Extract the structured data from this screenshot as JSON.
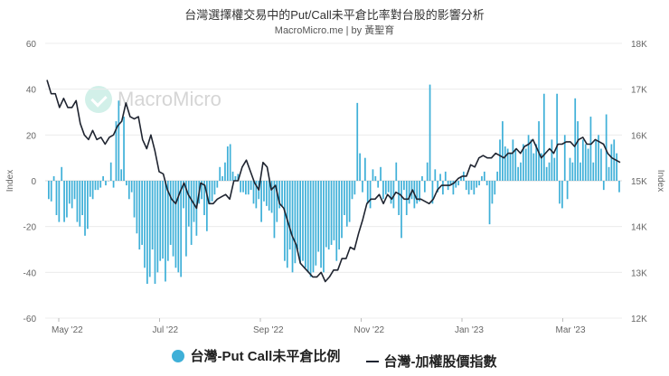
{
  "chart_data": {
    "type": "bar+line",
    "title": "台灣選擇權交易中的Put/Call未平倉比率對台股的影響分析",
    "subtitle": "MacroMicro.me | by 黃聖育",
    "watermark": "MacroMicro",
    "y_left": {
      "label": "Index",
      "ylim": [
        -60,
        60
      ],
      "ticks": [
        60,
        40,
        20,
        0,
        -20,
        -40,
        -60
      ]
    },
    "y_right": {
      "label": "Index",
      "ylim": [
        12,
        18
      ],
      "ticks": [
        "18K",
        "17K",
        "16K",
        "15K",
        "14K",
        "13K",
        "12K"
      ]
    },
    "x_axis": {
      "ticks": [
        "May '22",
        "Jul '22",
        "Sep '22",
        "Nov '22",
        "Jan '23",
        "Mar '23"
      ]
    },
    "legend_position": "bottom",
    "series": [
      {
        "name": "台灣-Put Call未平倉比例",
        "kind": "bar",
        "color": "#3fb0d8",
        "values": [
          -8,
          -9,
          2,
          -15,
          -18,
          6,
          -18,
          -16,
          -10,
          -12,
          -8,
          -18,
          -20,
          -15,
          -24,
          -21,
          -7,
          -8,
          -4,
          -4,
          -3,
          2,
          -2,
          0,
          8,
          -3,
          26,
          35,
          5,
          28,
          -2,
          -8,
          -5,
          -16,
          -23,
          -30,
          -28,
          -38,
          -45,
          -42,
          -30,
          -45,
          -40,
          -35,
          -34,
          -44,
          -35,
          -28,
          -33,
          -38,
          -40,
          -42,
          -12,
          -33,
          -20,
          -28,
          -18,
          -24,
          -10,
          -8,
          -15,
          -22,
          -10,
          -9,
          -6,
          -3,
          6,
          2,
          8,
          15,
          16,
          4,
          2,
          3,
          -5,
          -5,
          -6,
          -6,
          -4,
          -10,
          -12,
          -8,
          -18,
          -9,
          -11,
          -13,
          -14,
          -25,
          -18,
          -12,
          -11,
          -35,
          -38,
          -30,
          -40,
          -36,
          -30,
          -36,
          -35,
          -38,
          -40,
          -42,
          -40,
          -37,
          -31,
          -38,
          -40,
          -29,
          -30,
          -28,
          -26,
          -35,
          -30,
          -25,
          -15,
          -20,
          -18,
          -8,
          -6,
          34,
          12,
          -5,
          10,
          -10,
          -12,
          5,
          2,
          -3,
          6,
          -8,
          -6,
          -5,
          -10,
          -12,
          8,
          -15,
          -25,
          -4,
          -15,
          -10,
          -8,
          -12,
          -10,
          -9,
          2,
          -5,
          8,
          42,
          -10,
          5,
          -5,
          3,
          -6,
          4,
          -4,
          -2,
          -6,
          -3,
          -2,
          2,
          4,
          -4,
          -6,
          -4,
          -6,
          -3,
          -2,
          2,
          4,
          -2,
          -19,
          -10,
          -6,
          4,
          18,
          26,
          15,
          14,
          12,
          18,
          14,
          6,
          8,
          16,
          14,
          20,
          18,
          12,
          16,
          26,
          12,
          38,
          6,
          8,
          18,
          10,
          38,
          -10,
          -12,
          20,
          -8,
          10,
          8,
          36,
          26,
          8,
          18,
          16,
          14,
          28,
          8,
          18,
          20,
          14,
          -4,
          29,
          6,
          16,
          18,
          12,
          -5
        ],
        "range": [
          -45,
          42
        ]
      },
      {
        "name": "台灣-加權股價指數",
        "kind": "line",
        "color": "#1f2430",
        "values": [
          17.2,
          16.9,
          16.9,
          16.6,
          16.8,
          16.6,
          16.6,
          16.75,
          16.25,
          16.0,
          15.9,
          16.1,
          15.9,
          15.95,
          15.8,
          15.95,
          16.0,
          16.2,
          16.3,
          16.7,
          16.4,
          16.35,
          16.4,
          15.9,
          15.7,
          16.0,
          15.65,
          15.2,
          15.15,
          14.8,
          14.6,
          14.5,
          14.75,
          14.95,
          14.7,
          14.55,
          14.4,
          14.95,
          14.9,
          14.5,
          14.5,
          14.6,
          14.65,
          14.7,
          14.6,
          15.0,
          15.0,
          15.3,
          15.45,
          15.2,
          14.95,
          14.8,
          15.4,
          15.3,
          14.8,
          14.9,
          14.5,
          14.4,
          14.1,
          13.8,
          13.6,
          13.2,
          13.1,
          13.0,
          12.9,
          12.9,
          13.0,
          12.8,
          12.9,
          13.05,
          13.05,
          13.3,
          13.3,
          13.55,
          13.5,
          13.85,
          14.15,
          14.5,
          14.6,
          14.6,
          14.7,
          14.5,
          14.7,
          14.6,
          14.75,
          14.7,
          14.6,
          14.6,
          14.8,
          14.6,
          14.6,
          14.55,
          14.5,
          14.6,
          14.8,
          14.9,
          14.9,
          14.9,
          14.95,
          15.05,
          15.1,
          15.1,
          15.35,
          15.3,
          15.5,
          15.55,
          15.5,
          15.5,
          15.6,
          15.55,
          15.5,
          15.6,
          15.6,
          15.7,
          15.6,
          15.75,
          15.8,
          15.9,
          15.7,
          15.5,
          15.6,
          15.7,
          15.6,
          15.8,
          15.8,
          15.85,
          15.85,
          15.75,
          15.9,
          15.95,
          15.8,
          15.8,
          15.9,
          15.85,
          15.8,
          15.6,
          15.5,
          15.45,
          15.4
        ]
      }
    ]
  }
}
